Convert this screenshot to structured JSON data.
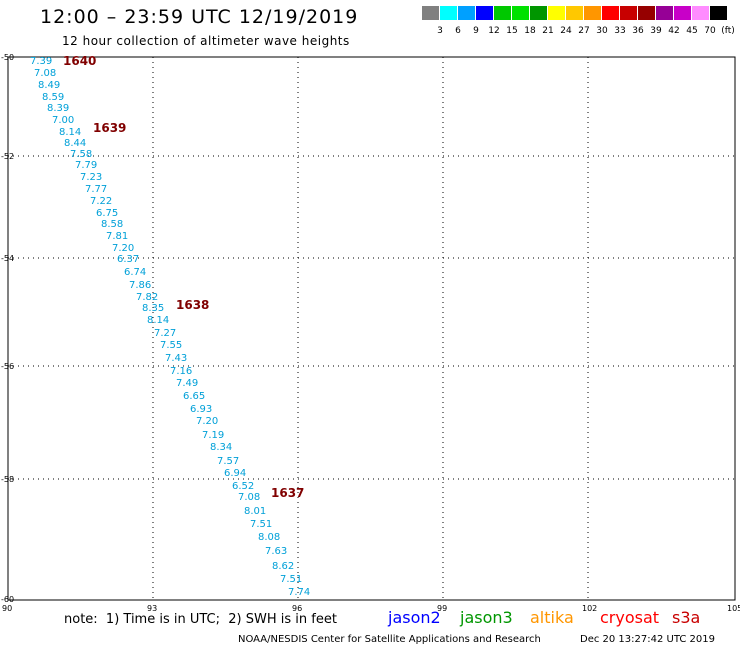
{
  "title": "12:00 – 23:59 UTC 12/19/2019",
  "subtitle": "12 hour collection of altimeter wave heights",
  "legend": {
    "colors": [
      "#808080",
      "#00ffff",
      "#00a0ff",
      "#0000ff",
      "#00c800",
      "#00e100",
      "#009600",
      "#ffff00",
      "#ffc800",
      "#ff9600",
      "#ff0000",
      "#c80000",
      "#960000",
      "#960096",
      "#c800c8",
      "#ff8cff",
      "#000000"
    ],
    "labels": [
      "3",
      "6",
      "9",
      "12",
      "15",
      "18",
      "21",
      "24",
      "27",
      "30",
      "33",
      "36",
      "39",
      "42",
      "45",
      "70",
      "(ft)"
    ]
  },
  "axes": {
    "lon_labels": [
      "90",
      "93",
      "96",
      "99",
      "102",
      "105"
    ],
    "lat_labels": [
      "-50",
      "-52",
      "-54",
      "-56",
      "-58",
      "-60"
    ]
  },
  "colors": {
    "swh": "#00a0d8",
    "time": "#800000"
  },
  "swh_labels": [
    "7.39",
    "7.08",
    "8.49",
    "8.59",
    "8.39",
    "7.00",
    "8.14",
    "8.44",
    "7.58",
    "7.79",
    "7.23",
    "7.77",
    "7.22",
    "6.75",
    "8.58",
    "7.81",
    "7.20",
    "6.37",
    "6.74",
    "7.86",
    "7.82",
    "8.35",
    "8.14",
    "7.27",
    "7.55",
    "7.43",
    "7.16",
    "7.49",
    "6.65",
    "6.93",
    "7.20",
    "7.19",
    "8.34",
    "7.57",
    "6.94",
    "6.52",
    "7.08",
    "8.01",
    "7.51",
    "8.08",
    "7.63",
    "8.62",
    "7.51",
    "7.74"
  ],
  "time_labels": [
    "1640",
    "1639",
    "1638",
    "1637"
  ],
  "footer": {
    "note": "note:  1) Time is in UTC;  2) SWH is in feet",
    "satellites": [
      {
        "name": "jason2",
        "color": "#0000ff"
      },
      {
        "name": "jason3",
        "color": "#009600"
      },
      {
        "name": "altika",
        "color": "#ff9600"
      },
      {
        "name": "cryosat",
        "color": "#ff0000"
      },
      {
        "name": "s3a",
        "color": "#c80000"
      }
    ],
    "credit": "NOAA/NESDIS Center for Satellite Applications and Research",
    "timestamp": "Dec 20 13:27:42 UTC 2019"
  }
}
